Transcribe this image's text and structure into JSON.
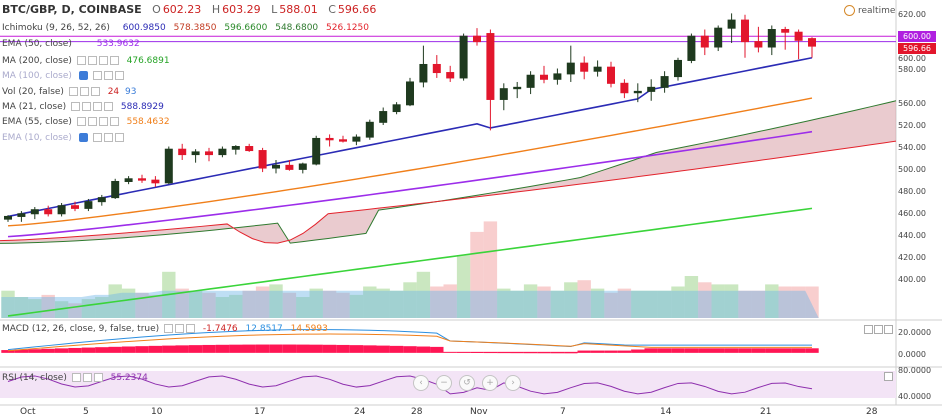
{
  "header": {
    "title": "BTC/GBP, D, COINBASE",
    "ohlc": [
      {
        "key": "O",
        "value": "602.23"
      },
      {
        "key": "H",
        "value": "603.29"
      },
      {
        "key": "L",
        "value": "588.01"
      },
      {
        "key": "C",
        "value": "596.66"
      }
    ]
  },
  "status": {
    "label": "realtime"
  },
  "indicators": {
    "ichimoku": {
      "name": "Ichimoku (9, 26, 52, 26)",
      "values": [
        "600.9850",
        "578.3850",
        "596.6600",
        "548.6800",
        "526.1250"
      ]
    },
    "ema50": {
      "name": "EMA (50, close)",
      "value": "533.9632"
    },
    "ma200": {
      "name": "MA (200, close)",
      "value": "476.6891"
    },
    "ma100": {
      "name": "MA (100, close)",
      "value": ""
    },
    "vol": {
      "name": "Vol (20, false)",
      "values": [
        "24",
        "93"
      ]
    },
    "ma21": {
      "name": "MA (21, close)",
      "value": "588.8929"
    },
    "ema55": {
      "name": "EMA (55, close)",
      "value": "558.4632"
    },
    "ema10": {
      "name": "EMA (10, close)",
      "value": ""
    },
    "macd": {
      "name": "MACD (12, 26, close, 9, false, true)",
      "values": [
        "-1.7476",
        "12.8517",
        "14.5993"
      ]
    },
    "rsi": {
      "name": "RSI (14, close)",
      "value": "55.2374"
    }
  },
  "price_tags": [
    "600.00",
    "596.66"
  ],
  "price_axis": [
    "620.00",
    "600.00",
    "580.00",
    "560.00",
    "540.00",
    "520.00",
    "500.00",
    "480.00",
    "460.00",
    "440.00",
    "420.00",
    "400.00"
  ],
  "macd_axis": [
    "20.0000",
    "0.0000"
  ],
  "rsi_axis": [
    "80.0000",
    "40.0000"
  ],
  "x_axis": [
    "Oct",
    "5",
    "10",
    "17",
    "24",
    "28",
    "Nov",
    "7",
    "14",
    "21",
    "28"
  ],
  "colors": {
    "up": "#1f3a1f",
    "down": "#e2162c",
    "tenkan": "#2b2bb5",
    "ema55": "#f07f1a",
    "purple": "#9c2dea",
    "ma200": "#3ad43a",
    "cloudBull": "#2f7a2f",
    "cloudBear": "#e3232c",
    "cloudFill": "#d9a0a8",
    "macd": "#2c8fe0",
    "signal": "#f07f1a",
    "hist": "#ff1654",
    "rsi": "#8e2fae"
  },
  "chart_data": {
    "type": "candlestick",
    "symbol": "BTC/GBP",
    "timeframe": "D",
    "exchange": "COINBASE",
    "ylim": [
      393,
      625
    ],
    "candles": [
      {
        "o": 468,
        "h": 471,
        "l": 466,
        "c": 470
      },
      {
        "o": 470,
        "h": 474,
        "l": 466,
        "c": 472
      },
      {
        "o": 472,
        "h": 477,
        "l": 468,
        "c": 475
      },
      {
        "o": 475,
        "h": 478,
        "l": 470,
        "c": 472
      },
      {
        "o": 472,
        "h": 480,
        "l": 470,
        "c": 478
      },
      {
        "o": 478,
        "h": 481,
        "l": 474,
        "c": 476
      },
      {
        "o": 476,
        "h": 483,
        "l": 474,
        "c": 481
      },
      {
        "o": 481,
        "h": 486,
        "l": 478,
        "c": 484
      },
      {
        "o": 484,
        "h": 498,
        "l": 483,
        "c": 496
      },
      {
        "o": 496,
        "h": 500,
        "l": 494,
        "c": 498
      },
      {
        "o": 498,
        "h": 501,
        "l": 495,
        "c": 497
      },
      {
        "o": 497,
        "h": 500,
        "l": 492,
        "c": 495
      },
      {
        "o": 495,
        "h": 522,
        "l": 494,
        "c": 520
      },
      {
        "o": 520,
        "h": 524,
        "l": 512,
        "c": 516
      },
      {
        "o": 516,
        "h": 520,
        "l": 510,
        "c": 518
      },
      {
        "o": 518,
        "h": 521,
        "l": 511,
        "c": 516
      },
      {
        "o": 516,
        "h": 522,
        "l": 514,
        "c": 520
      },
      {
        "o": 520,
        "h": 523,
        "l": 516,
        "c": 522
      },
      {
        "o": 522,
        "h": 524,
        "l": 518,
        "c": 519
      },
      {
        "o": 519,
        "h": 521,
        "l": 503,
        "c": 506
      },
      {
        "o": 506,
        "h": 512,
        "l": 502,
        "c": 508
      },
      {
        "o": 508,
        "h": 512,
        "l": 504,
        "c": 505
      },
      {
        "o": 505,
        "h": 510,
        "l": 502,
        "c": 509
      },
      {
        "o": 509,
        "h": 530,
        "l": 508,
        "c": 528
      },
      {
        "o": 528,
        "h": 531,
        "l": 522,
        "c": 527
      },
      {
        "o": 527,
        "h": 530,
        "l": 525,
        "c": 526
      },
      {
        "o": 526,
        "h": 531,
        "l": 523,
        "c": 529
      },
      {
        "o": 529,
        "h": 542,
        "l": 527,
        "c": 540
      },
      {
        "o": 540,
        "h": 551,
        "l": 538,
        "c": 548
      },
      {
        "o": 548,
        "h": 555,
        "l": 546,
        "c": 553
      },
      {
        "o": 553,
        "h": 573,
        "l": 552,
        "c": 570
      },
      {
        "o": 570,
        "h": 597,
        "l": 566,
        "c": 583
      },
      {
        "o": 583,
        "h": 590,
        "l": 573,
        "c": 577
      },
      {
        "o": 577,
        "h": 582,
        "l": 570,
        "c": 573
      },
      {
        "o": 573,
        "h": 606,
        "l": 571,
        "c": 604
      },
      {
        "o": 604,
        "h": 610,
        "l": 597,
        "c": 600
      },
      {
        "o": 606,
        "h": 609,
        "l": 534,
        "c": 557
      },
      {
        "o": 557,
        "h": 569,
        "l": 549,
        "c": 565
      },
      {
        "o": 565,
        "h": 570,
        "l": 558,
        "c": 566
      },
      {
        "o": 566,
        "h": 578,
        "l": 561,
        "c": 575
      },
      {
        "o": 575,
        "h": 582,
        "l": 569,
        "c": 572
      },
      {
        "o": 572,
        "h": 580,
        "l": 568,
        "c": 576
      },
      {
        "o": 576,
        "h": 597,
        "l": 570,
        "c": 584
      },
      {
        "o": 584,
        "h": 589,
        "l": 572,
        "c": 578
      },
      {
        "o": 578,
        "h": 586,
        "l": 574,
        "c": 581
      },
      {
        "o": 581,
        "h": 585,
        "l": 566,
        "c": 569
      },
      {
        "o": 569,
        "h": 572,
        "l": 558,
        "c": 562
      },
      {
        "o": 562,
        "h": 569,
        "l": 555,
        "c": 563
      },
      {
        "o": 563,
        "h": 572,
        "l": 556,
        "c": 566
      },
      {
        "o": 566,
        "h": 578,
        "l": 562,
        "c": 574
      },
      {
        "o": 574,
        "h": 588,
        "l": 571,
        "c": 586
      },
      {
        "o": 586,
        "h": 606,
        "l": 584,
        "c": 604
      },
      {
        "o": 604,
        "h": 609,
        "l": 590,
        "c": 596
      },
      {
        "o": 596,
        "h": 612,
        "l": 593,
        "c": 610
      },
      {
        "o": 610,
        "h": 621,
        "l": 599,
        "c": 616
      },
      {
        "o": 616,
        "h": 620,
        "l": 588,
        "c": 600
      },
      {
        "o": 600,
        "h": 611,
        "l": 592,
        "c": 596
      },
      {
        "o": 596,
        "h": 612,
        "l": 590,
        "c": 609
      },
      {
        "o": 609,
        "h": 611,
        "l": 594,
        "c": 607
      },
      {
        "o": 607,
        "h": 609,
        "l": 587,
        "c": 601
      },
      {
        "o": 602.23,
        "h": 603.29,
        "l": 588.01,
        "c": 596.66
      }
    ],
    "volume": [
      13,
      10,
      9,
      11,
      8,
      7,
      9,
      10,
      16,
      14,
      12,
      11,
      22,
      14,
      13,
      12,
      10,
      11,
      13,
      15,
      16,
      12,
      10,
      14,
      13,
      12,
      11,
      15,
      14,
      13,
      17,
      22,
      15,
      16,
      30,
      41,
      46,
      14,
      13,
      16,
      15,
      13,
      17,
      18,
      14,
      12,
      14,
      13,
      13,
      13,
      15,
      20,
      17,
      16,
      16,
      13,
      13,
      16,
      15,
      15,
      15
    ],
    "ichimoku_cloud_end": {
      "span_a": 548.68,
      "span_b": 526.125
    },
    "macd": {
      "macd": -1.7476,
      "signal": 12.8517,
      "histogram": 14.5993,
      "ylim": [
        -10,
        25
      ]
    },
    "rsi": {
      "value": 55.2374,
      "ylim": [
        30,
        90
      ]
    }
  }
}
